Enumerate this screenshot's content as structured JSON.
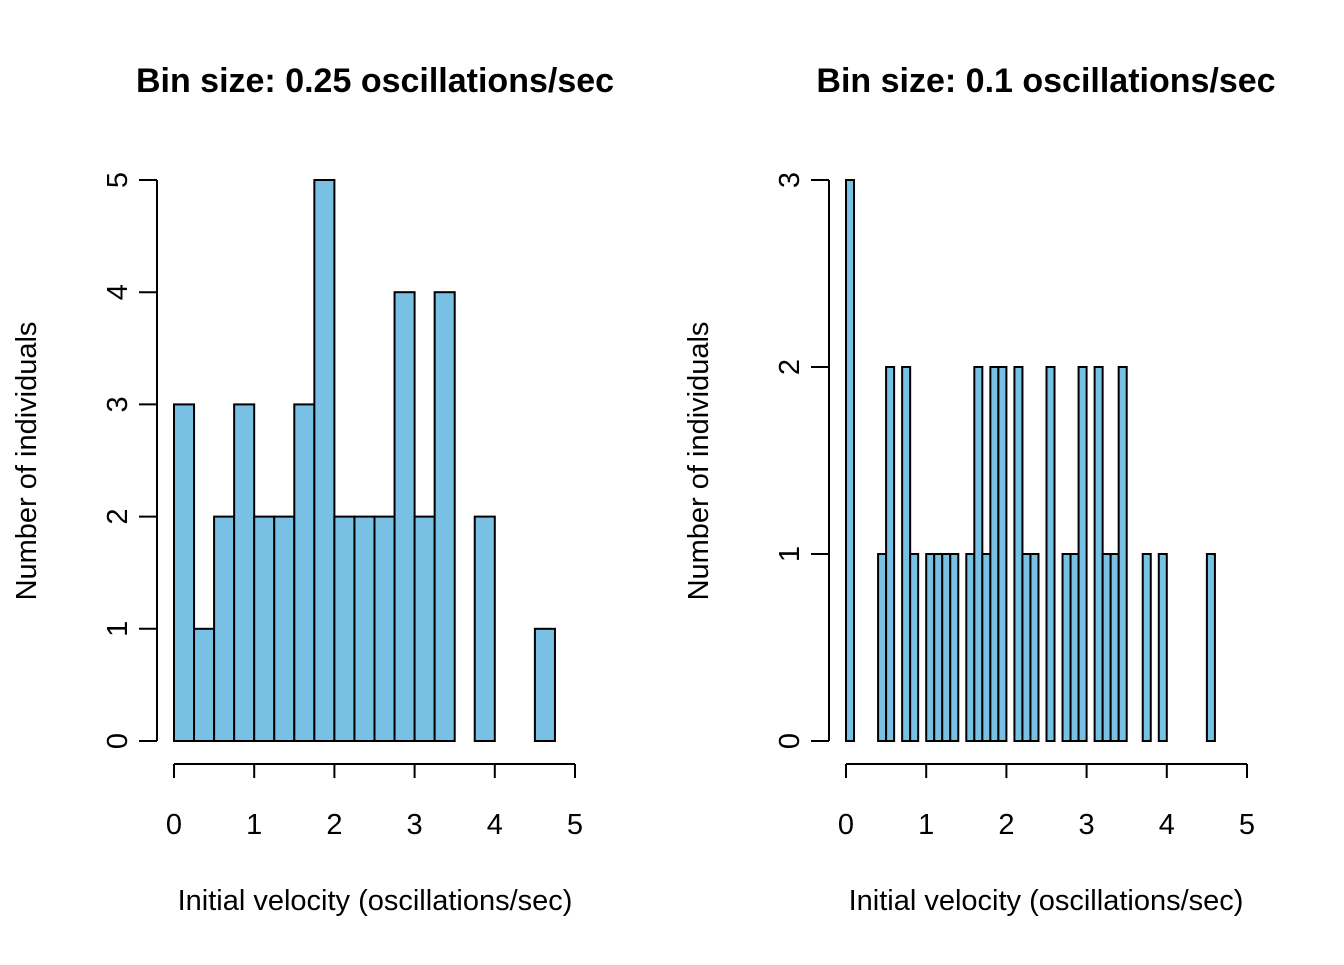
{
  "colors": {
    "bar_fill": "#78C1E5",
    "bar_stroke": "#000000",
    "background": "#FFFFFF"
  },
  "chart_data": [
    {
      "type": "bar",
      "title": "Bin size: 0.25 oscillations/sec",
      "xlabel": "Initial velocity (oscillations/sec)",
      "ylabel": "Number of individuals",
      "bin_width": 0.25,
      "bin_start": 0,
      "values": [
        3,
        1,
        2,
        3,
        2,
        2,
        3,
        5,
        2,
        2,
        2,
        4,
        2,
        4,
        0,
        2,
        0,
        0,
        1
      ],
      "xlim": [
        0,
        5
      ],
      "ylim": [
        0,
        5
      ],
      "x_ticks": [
        0,
        1,
        2,
        3,
        4,
        5
      ],
      "y_ticks": [
        0,
        1,
        2,
        3,
        4,
        5
      ],
      "grid": false
    },
    {
      "type": "bar",
      "title": "Bin size: 0.1 oscillations/sec",
      "xlabel": "Initial velocity (oscillations/sec)",
      "ylabel": "Number of individuals",
      "bin_width": 0.1,
      "bin_start": 0,
      "values": [
        3,
        0,
        0,
        0,
        1,
        2,
        0,
        2,
        1,
        0,
        1,
        1,
        1,
        1,
        0,
        1,
        2,
        1,
        2,
        2,
        0,
        2,
        1,
        1,
        0,
        2,
        0,
        1,
        1,
        2,
        0,
        2,
        1,
        1,
        2,
        0,
        0,
        1,
        0,
        1,
        0,
        0,
        0,
        0,
        0,
        1,
        0,
        0,
        0,
        0
      ],
      "xlim": [
        0,
        5
      ],
      "ylim": [
        0,
        3
      ],
      "x_ticks": [
        0,
        1,
        2,
        3,
        4,
        5
      ],
      "y_ticks": [
        0,
        1,
        2,
        3
      ],
      "grid": false
    }
  ]
}
